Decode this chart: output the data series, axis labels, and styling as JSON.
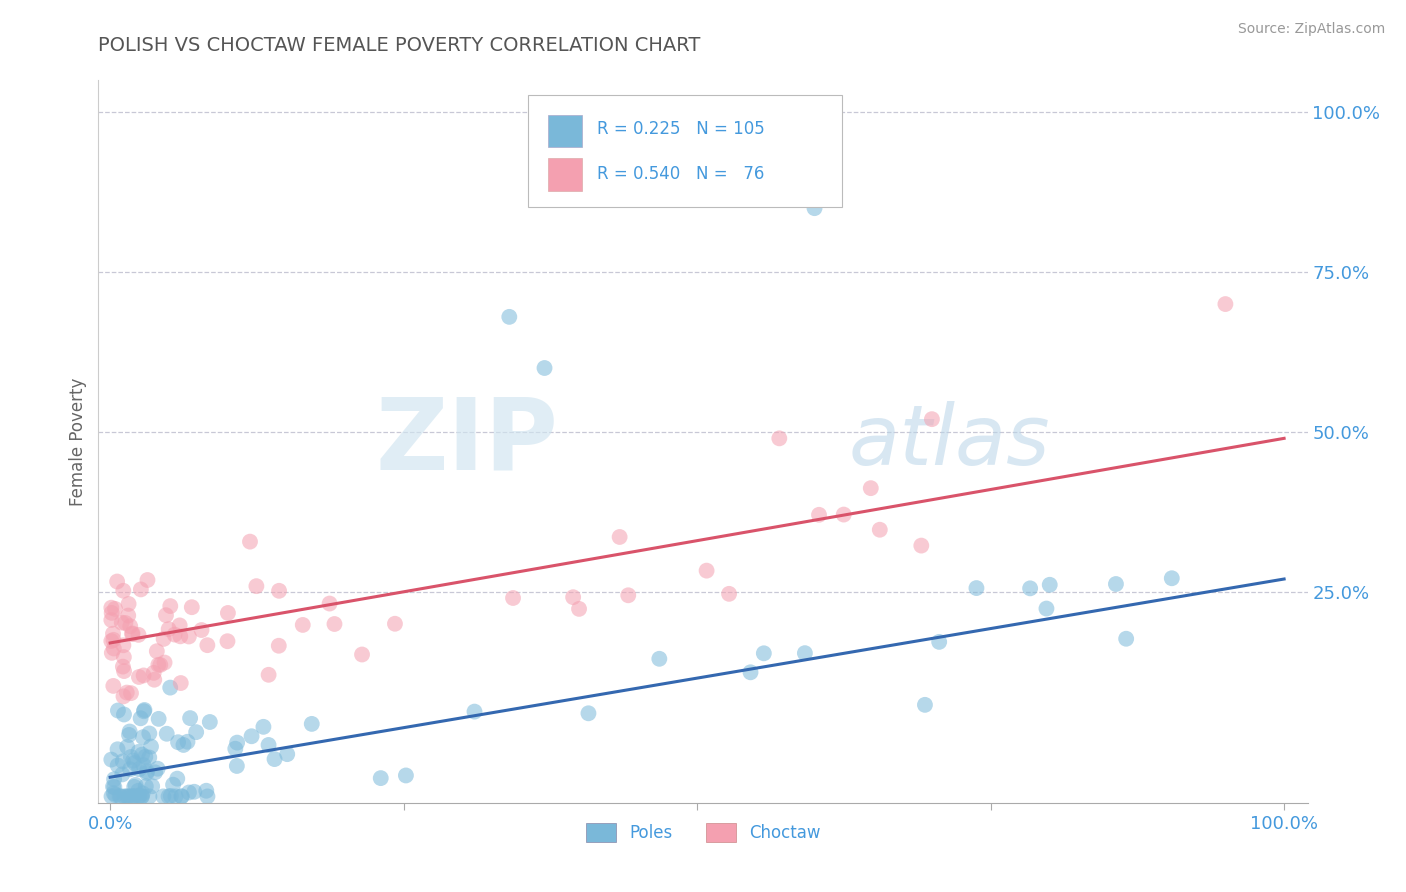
{
  "title": "POLISH VS CHOCTAW FEMALE POVERTY CORRELATION CHART",
  "source": "Source: ZipAtlas.com",
  "ylabel": "Female Poverty",
  "right_yticks": [
    "100.0%",
    "75.0%",
    "50.0%",
    "25.0%"
  ],
  "right_ytick_vals": [
    1.0,
    0.75,
    0.5,
    0.25
  ],
  "legend_poles_R": "0.225",
  "legend_poles_N": "105",
  "legend_choctaw_R": "0.540",
  "legend_choctaw_N": "76",
  "poles_color": "#7ab8d9",
  "choctaw_color": "#f4a0b0",
  "poles_line_color": "#3468b0",
  "choctaw_line_color": "#d9536a",
  "watermark_zip": "ZIP",
  "watermark_atlas": "atlas",
  "background_color": "#ffffff",
  "title_color": "#555555",
  "axis_label_color": "#4499dd",
  "poles_line_x0": 0.0,
  "poles_line_y0": -0.04,
  "poles_line_x1": 1.0,
  "poles_line_y1": 0.27,
  "choctaw_line_x0": 0.0,
  "choctaw_line_y0": 0.17,
  "choctaw_line_x1": 1.0,
  "choctaw_line_y1": 0.49,
  "ylim_min": -0.08,
  "ylim_max": 1.05,
  "xlim_min": -0.01,
  "xlim_max": 1.02
}
